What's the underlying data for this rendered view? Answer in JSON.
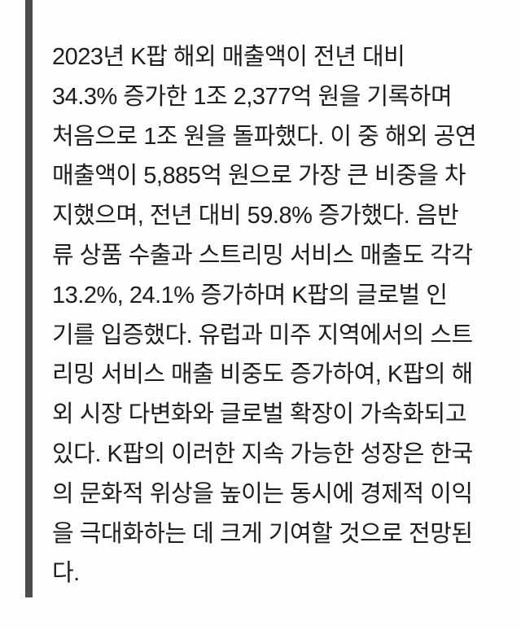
{
  "page": {
    "background_color": "#fdfdfd"
  },
  "quote_block": {
    "bar_color": "#4c4c4c",
    "text_color": "#1e1e1e",
    "lines": [
      "2023년 K팝 해외 매출액이 전년 대비",
      "34.3% 증가한 1조 2,377억 원을 기록하며",
      "처음으로 1조 원을 돌파했다. 이 중 해외 공연",
      "매출액이 5,885억 원으로 가장 큰 비중을 차",
      "지했으며, 전년 대비 59.8% 증가했다. 음반",
      "류 상품 수출과 스트리밍 서비스 매출도 각각",
      "13.2%, 24.1% 증가하며 K팝의 글로벌 인",
      "기를 입증했다. 유럽과 미주 지역에서의 스트",
      "리밍 서비스 매출 비중도 증가하여, K팝의 해",
      "외 시장 다변화와 글로벌 확장이 가속화되고",
      "있다. K팝의 이러한 지속 가능한 성장은 한국",
      "의 문화적 위상을 높이는 동시에 경제적 이익",
      "을 극대화하는 데 크게 기여할 것으로 전망된",
      "다."
    ]
  }
}
